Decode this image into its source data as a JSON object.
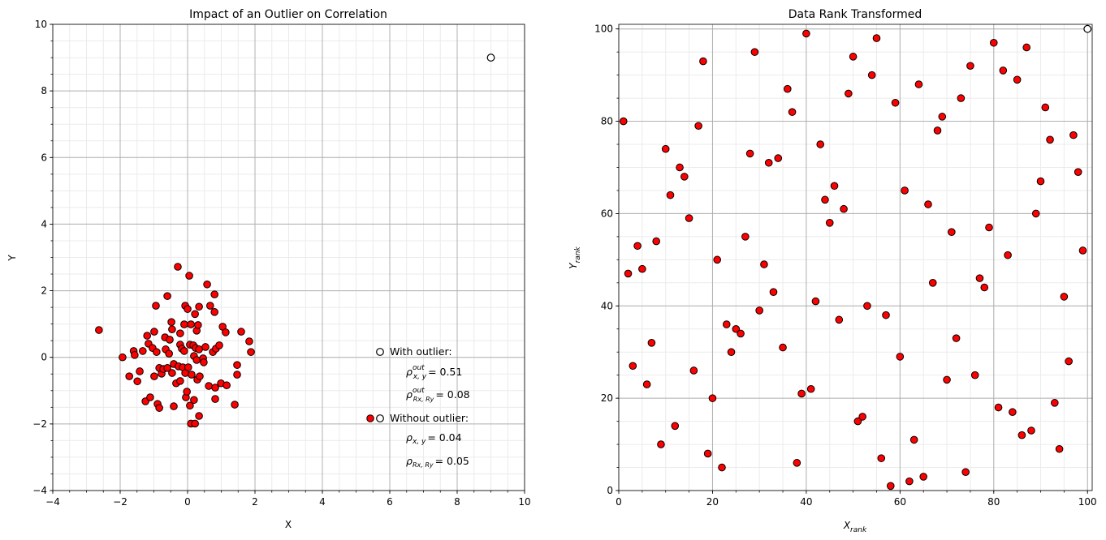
{
  "chart_data": [
    {
      "type": "scatter",
      "title": "Impact of an Outlier on Correlation",
      "xlabel": "X",
      "ylabel": "Y",
      "xlim": [
        -4,
        10
      ],
      "ylim": [
        -4,
        10
      ],
      "xticks": [
        -4,
        -2,
        0,
        2,
        4,
        6,
        8,
        10
      ],
      "yticks": [
        -4,
        -2,
        0,
        2,
        4,
        6,
        8,
        10
      ],
      "minor_step": 0.5,
      "grid": true,
      "colors": {
        "points": "#ff0000",
        "outlier": "#ffffff",
        "edge": "#000000",
        "grid_major": "#b0b0b0",
        "grid_minor": "#ebebeb"
      },
      "outlier": {
        "x": 9,
        "y": 9
      },
      "points": [
        [
          -2.63,
          0.82
        ],
        [
          -1.93,
          0
        ],
        [
          -1.73,
          -0.57
        ],
        [
          -1.6,
          0.19
        ],
        [
          -1.57,
          0.07
        ],
        [
          -1.49,
          -0.72
        ],
        [
          -1.42,
          -0.42
        ],
        [
          -1.33,
          0.19
        ],
        [
          -1.25,
          -1.32
        ],
        [
          -1.2,
          0.65
        ],
        [
          -1.16,
          0.41
        ],
        [
          -1.11,
          -1.2
        ],
        [
          -1.04,
          0.28
        ],
        [
          -0.99,
          0.77
        ],
        [
          -0.99,
          -0.57
        ],
        [
          -0.94,
          1.55
        ],
        [
          -0.92,
          0.16
        ],
        [
          -0.89,
          -1.4
        ],
        [
          -0.84,
          -1.52
        ],
        [
          -0.84,
          -0.32
        ],
        [
          -0.77,
          -0.49
        ],
        [
          -0.72,
          -0.35
        ],
        [
          -0.67,
          0.6
        ],
        [
          -0.65,
          0.24
        ],
        [
          -0.6,
          1.84
        ],
        [
          -0.6,
          -0.32
        ],
        [
          -0.55,
          0.11
        ],
        [
          -0.53,
          0.53
        ],
        [
          -0.48,
          1.06
        ],
        [
          -0.46,
          0.84
        ],
        [
          -0.46,
          -0.47
        ],
        [
          -0.41,
          -0.2
        ],
        [
          -0.41,
          -1.47
        ],
        [
          -0.34,
          -0.78
        ],
        [
          -0.29,
          2.72
        ],
        [
          -0.27,
          -0.27
        ],
        [
          -0.22,
          0.72
        ],
        [
          -0.22,
          0.38
        ],
        [
          -0.22,
          -0.71
        ],
        [
          -0.17,
          0.26
        ],
        [
          -0.14,
          -0.3
        ],
        [
          -0.1,
          0.99
        ],
        [
          -0.1,
          0.19
        ],
        [
          -0.07,
          1.55
        ],
        [
          -0.07,
          -0.47
        ],
        [
          -0.05,
          -1.2
        ],
        [
          -0.02,
          -1.03
        ],
        [
          0,
          1.45
        ],
        [
          0.02,
          -0.3
        ],
        [
          0.05,
          2.45
        ],
        [
          0.07,
          0.38
        ],
        [
          0.07,
          -1.45
        ],
        [
          0.1,
          0.99
        ],
        [
          0.1,
          -1.99
        ],
        [
          0.12,
          -0.52
        ],
        [
          0.17,
          0.36
        ],
        [
          0.19,
          0.04
        ],
        [
          0.19,
          -1.28
        ],
        [
          0.22,
          1.3
        ],
        [
          0.22,
          -1.99
        ],
        [
          0.24,
          0.28
        ],
        [
          0.27,
          0.8
        ],
        [
          0.27,
          -0.08
        ],
        [
          0.29,
          -0.67
        ],
        [
          0.31,
          0.97
        ],
        [
          0.34,
          1.52
        ],
        [
          0.34,
          0.24
        ],
        [
          0.34,
          -1.76
        ],
        [
          0.36,
          -0.57
        ],
        [
          0.46,
          -0.03
        ],
        [
          0.48,
          -0.15
        ],
        [
          0.53,
          0.31
        ],
        [
          0.58,
          2.19
        ],
        [
          0.63,
          -0.86
        ],
        [
          0.67,
          1.55
        ],
        [
          0.75,
          0.16
        ],
        [
          0.8,
          1.89
        ],
        [
          0.8,
          1.36
        ],
        [
          0.82,
          -0.91
        ],
        [
          0.82,
          -1.25
        ],
        [
          0.84,
          0.26
        ],
        [
          0.94,
          0.36
        ],
        [
          0.99,
          -0.78
        ],
        [
          1.04,
          0.92
        ],
        [
          1.13,
          0.75
        ],
        [
          1.16,
          -0.84
        ],
        [
          1.4,
          -1.42
        ],
        [
          1.47,
          -0.23
        ],
        [
          1.47,
          -0.52
        ],
        [
          1.59,
          0.77
        ],
        [
          1.83,
          0.48
        ],
        [
          1.88,
          0.16
        ]
      ],
      "legend": {
        "placement": "lower-right",
        "with_label": "With outlier:",
        "without_label": "Without outlier:",
        "entries": [
          {
            "sym": "ρ",
            "sup": "out",
            "sub": "x, y",
            "val": "= 0.51"
          },
          {
            "sym": "ρ",
            "sup": "out",
            "sub": "Rx, Ry",
            "val": "= 0.08"
          },
          {
            "sym": "ρ",
            "sup": "",
            "sub": "x, y",
            "val": "= 0.04"
          },
          {
            "sym": "ρ",
            "sup": "",
            "sub": "Rx, Ry",
            "val": "= 0.05"
          }
        ]
      }
    },
    {
      "type": "scatter",
      "title": "Data Rank Transformed",
      "xlabel": "X_rank",
      "ylabel": "Y_rank",
      "xlabel_main": "X",
      "xlabel_sub": "rank",
      "ylabel_main": "Y",
      "ylabel_sub": "rank",
      "xlim": [
        0,
        101
      ],
      "ylim": [
        0,
        101
      ],
      "xticks": [
        0,
        20,
        40,
        60,
        80,
        100
      ],
      "yticks": [
        0,
        20,
        40,
        60,
        80,
        100
      ],
      "minor_step": 5,
      "grid": true,
      "outlier": {
        "x": 100,
        "y": 100
      },
      "y_by_x_rank": [
        80,
        47,
        27,
        53,
        48,
        23,
        32,
        54,
        10,
        74,
        64,
        14,
        70,
        68,
        59,
        26,
        79,
        93,
        8,
        20,
        50,
        5,
        36,
        30,
        35,
        34,
        55,
        73,
        95,
        39,
        49,
        71,
        43,
        72,
        31,
        87,
        82,
        6,
        21,
        99,
        22,
        41,
        75,
        63,
        58,
        66,
        37,
        61,
        86,
        94,
        15,
        16,
        40,
        90,
        98,
        7,
        38,
        1,
        84,
        29,
        65,
        2,
        11,
        88,
        3,
        62,
        45,
        78,
        81,
        24,
        56,
        33,
        85,
        4,
        92,
        25,
        46,
        44,
        57,
        97,
        18,
        91,
        51,
        17,
        89,
        12,
        96,
        13,
        60,
        67,
        83,
        76,
        19,
        9,
        42,
        28,
        77,
        69,
        52
      ]
    }
  ]
}
